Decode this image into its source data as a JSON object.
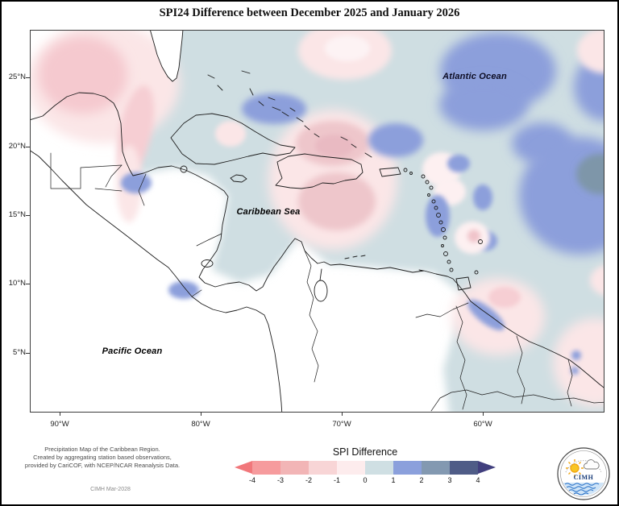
{
  "title": "SPI24 Difference between December 2025 and January 2026",
  "map": {
    "ocean_labels": {
      "atlantic": "Atlantic Ocean",
      "caribbean": "Caribbean Sea",
      "pacific": "Pacific Ocean"
    }
  },
  "axes": {
    "lat": [
      "25°N",
      "20°N",
      "15°N",
      "10°N",
      "5°N"
    ],
    "lon": [
      "90°W",
      "80°W",
      "70°W",
      "60°W"
    ]
  },
  "legend": {
    "title": "SPI Difference",
    "ticks": [
      "-4",
      "-3",
      "-2",
      "-1",
      "0",
      "1",
      "2",
      "3",
      "4"
    ],
    "segments": [
      "#f69b9d",
      "#f2b5b6",
      "#f8d5d6",
      "#fdeced",
      "#cfdfe3",
      "#8ba0dc",
      "#8399b1",
      "#4f5c87"
    ],
    "arrow_left_color": "#f1777b",
    "arrow_right_color": "#413f7e"
  },
  "map_palette": {
    "neutral_0_1": "#cfdee2",
    "wet_1_2": "#8c9fdb",
    "wet_2_3": "#7e96a9",
    "dry_0_1": "#fbe6e7",
    "dry_1_2": "#f6ced3",
    "dry_2_3": "#eec6cb"
  },
  "footer": {
    "lines": [
      "Precipitation Map of the Caribbean Region.",
      "Created by aggregating station based observations,",
      "provided by CariCOF, with NCEP/NCAR Reanalysis Data."
    ],
    "stamp": "CIMH Mar-2028"
  },
  "logo": {
    "text": "CIMH"
  }
}
